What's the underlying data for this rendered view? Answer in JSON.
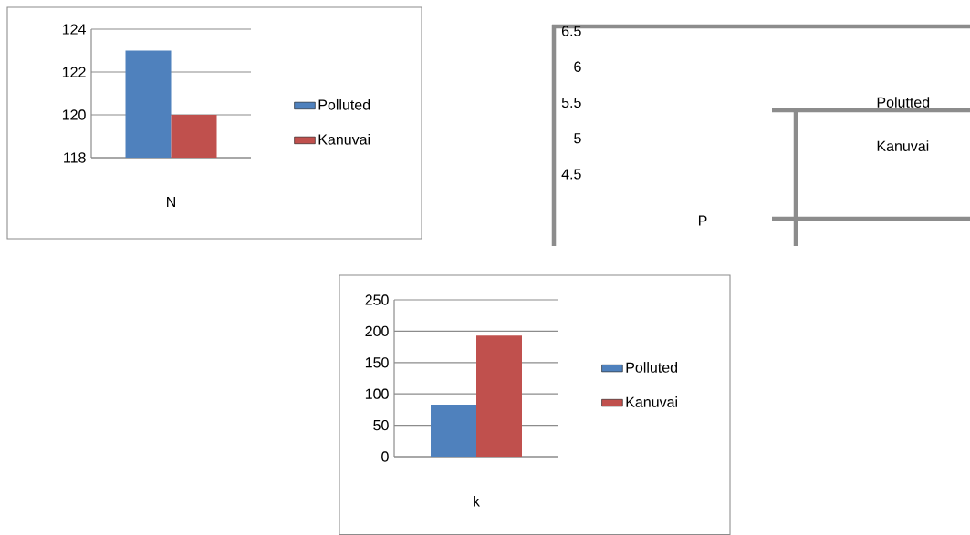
{
  "chart_data": [
    {
      "type": "bar",
      "categories": [
        "N"
      ],
      "series": [
        {
          "name": "Polluted",
          "color": "#4f81bd",
          "values": [
            123
          ]
        },
        {
          "name": "Kanuvai",
          "color": "#c0504d",
          "values": [
            120
          ]
        }
      ],
      "ylim": [
        118,
        124
      ],
      "yticks": [
        118,
        120,
        122,
        124
      ],
      "grid": "y",
      "legend": "right"
    },
    {
      "type": "bar",
      "categories": [
        "P"
      ],
      "series": [
        {
          "name": "Polutted",
          "values": [
            null
          ]
        },
        {
          "name": "Kanuvai",
          "values": [
            null
          ]
        }
      ],
      "ylim": [
        4.5,
        6.5
      ],
      "yticks": [
        4.5,
        5,
        5.5,
        6,
        6.5
      ]
    },
    {
      "type": "bar",
      "categories": [
        "k"
      ],
      "series": [
        {
          "name": "Polluted",
          "color": "#4f81bd",
          "values": [
            83
          ]
        },
        {
          "name": "Kanuvai",
          "color": "#c0504d",
          "values": [
            193
          ]
        }
      ],
      "ylim": [
        0,
        250
      ],
      "yticks": [
        0,
        50,
        100,
        150,
        200,
        250
      ],
      "grid": "y",
      "legend": "right"
    }
  ]
}
